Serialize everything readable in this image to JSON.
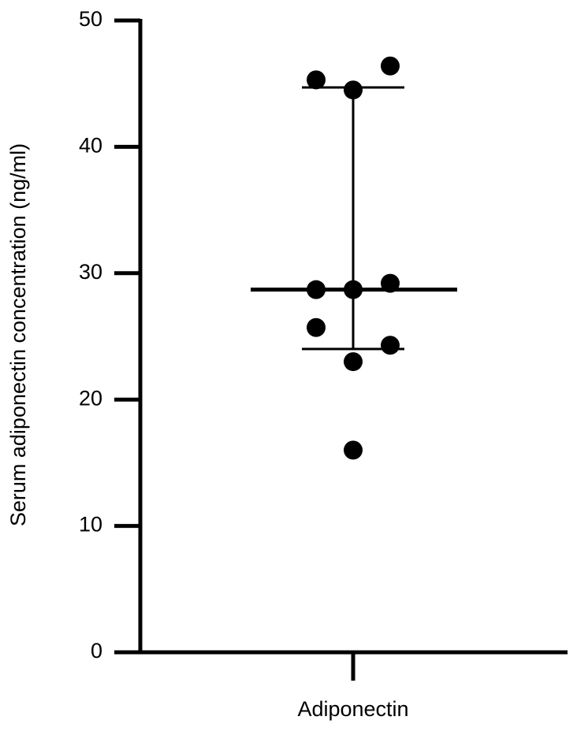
{
  "chart_data": {
    "type": "scatter",
    "y_label": "Serum adiponectin concentration (ng/ml)",
    "categories": [
      "Adiponectin"
    ],
    "values": [
      45.3,
      46.4,
      44.5,
      28.7,
      28.7,
      29.2,
      25.7,
      24.3,
      23.0,
      16.0
    ],
    "median": 28.7,
    "q1": 24.0,
    "q3": 44.7,
    "color": "#000000",
    "ylim": [
      0,
      50
    ],
    "yticks": [
      0,
      10,
      20,
      30,
      40,
      50
    ]
  }
}
